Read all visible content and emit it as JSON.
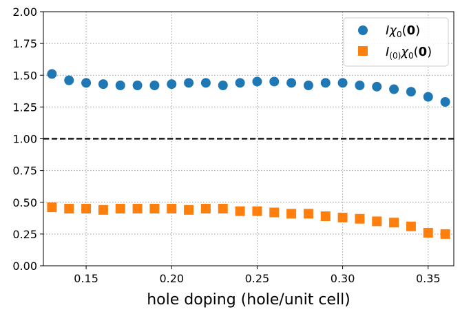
{
  "chart_data": {
    "type": "scatter",
    "title": "",
    "xlabel": "hole doping (hole/unit cell)",
    "ylabel": "",
    "xlim": [
      0.125,
      0.365
    ],
    "ylim": [
      0.0,
      2.0
    ],
    "xticks": [
      "0.15",
      "0.20",
      "0.25",
      "0.30",
      "0.35"
    ],
    "xtick_values": [
      0.15,
      0.2,
      0.25,
      0.3,
      0.35
    ],
    "yticks": [
      "0.00",
      "0.25",
      "0.50",
      "0.75",
      "1.00",
      "1.25",
      "1.50",
      "1.75",
      "2.00"
    ],
    "ytick_values": [
      0.0,
      0.25,
      0.5,
      0.75,
      1.0,
      1.25,
      1.5,
      1.75,
      2.0
    ],
    "grid": true,
    "legend_position": "top-right",
    "reference_line": {
      "y": 1.0,
      "style": "dashed",
      "color": "#000000"
    },
    "x": [
      0.13,
      0.14,
      0.15,
      0.16,
      0.17,
      0.18,
      0.19,
      0.2,
      0.21,
      0.22,
      0.23,
      0.24,
      0.25,
      0.26,
      0.27,
      0.28,
      0.29,
      0.3,
      0.31,
      0.32,
      0.33,
      0.34,
      0.35,
      0.36
    ],
    "series": [
      {
        "name": "I χ0(0)",
        "marker": "circle",
        "color": "#1f77b4",
        "values": [
          1.51,
          1.46,
          1.44,
          1.43,
          1.42,
          1.42,
          1.42,
          1.43,
          1.44,
          1.44,
          1.42,
          1.44,
          1.45,
          1.45,
          1.44,
          1.42,
          1.44,
          1.44,
          1.42,
          1.41,
          1.39,
          1.37,
          1.33,
          1.29
        ]
      },
      {
        "name": "I(0) χ0(0)",
        "marker": "square",
        "color": "#ff7f0e",
        "values": [
          0.46,
          0.45,
          0.45,
          0.44,
          0.45,
          0.45,
          0.45,
          0.45,
          0.44,
          0.45,
          0.45,
          0.43,
          0.43,
          0.42,
          0.41,
          0.41,
          0.39,
          0.38,
          0.37,
          0.35,
          0.34,
          0.31,
          0.26,
          0.25
        ]
      }
    ]
  }
}
